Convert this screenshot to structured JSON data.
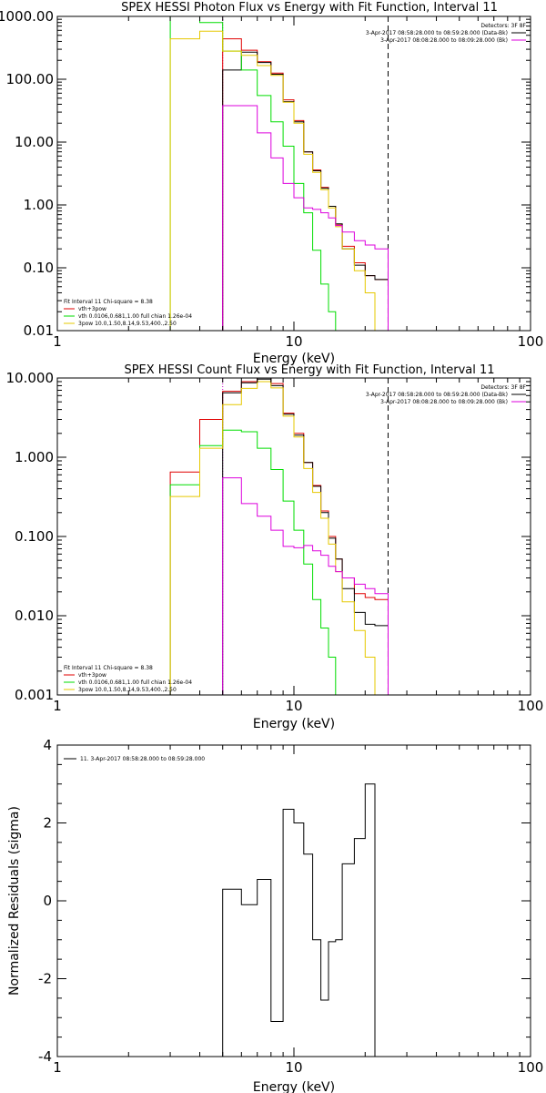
{
  "colors": {
    "total": "#000000",
    "vth_3pow": "#e00000",
    "vth": "#00dd00",
    "3pow": "#e6c800",
    "background": "#dd00dd",
    "fit_range_line": "#000000",
    "threshold_line": "#cc00cc"
  },
  "chart_data": [
    {
      "type": "line",
      "title": "SPEX HESSI Photon Flux vs Energy with Fit Function, Interval 11",
      "xlabel": "Energy (keV)",
      "ylabel": "",
      "xscale": "log",
      "yscale": "log",
      "xlim": [
        1,
        100
      ],
      "ylim": [
        0.01,
        1000
      ],
      "x_ticks": [
        1,
        10,
        100
      ],
      "x_tick_labels": [
        "1",
        "10",
        "100"
      ],
      "y_ticks": [
        0.01,
        0.1,
        1,
        10,
        100,
        1000
      ],
      "y_tick_labels": [
        "0.01",
        "0.10",
        "1.00",
        "10.00",
        "100.00",
        "1000.00"
      ],
      "info_text": [
        "Detectors: 3F 8F",
        "3-Apr-2017 08:58:28.000 to 08:59:28.000 (Data-Bk)",
        "3-Apr-2017 08:08:28.000 to 08:09:28.000 (Bk)"
      ],
      "vertical_lines": [
        {
          "x": 5.0,
          "style": "dotted",
          "color_key": "threshold_line"
        },
        {
          "x": 25.0,
          "style": "dashed",
          "color_key": "fit_range_line"
        }
      ],
      "legend": {
        "placement": "bottom-left",
        "lines": [
          "Fit Interval 11   Chi-square = 8.38",
          "vth+3pow",
          "vth 0.0106,0.681,1.00  full chian 1.26e-04",
          "3pow 10.0,1.50,8.14,9.53,400.,2.50"
        ]
      },
      "bin_edges": [
        3.0,
        4.0,
        5.0,
        6.0,
        7.0,
        8.0,
        9.0,
        10.0,
        11.0,
        12.0,
        13.0,
        14.0,
        15.0,
        16.0,
        18.0,
        20.0,
        22.0,
        25.0
      ],
      "series": [
        {
          "name": "vth+3pow",
          "color_key": "vth_3pow",
          "start": 2,
          "values": [
            440,
            290,
            190,
            125,
            47,
            22,
            7.0,
            3.6,
            1.9,
            0.95,
            0.48,
            0.22,
            0.12,
            0.075,
            0.065
          ]
        },
        {
          "name": "",
          "color_key": "total",
          "start": 2,
          "values": [
            140,
            270,
            185,
            120,
            44,
            21,
            7.0,
            3.5,
            1.85,
            0.95,
            0.5,
            0.2,
            0.11,
            0.075,
            0.065
          ]
        },
        {
          "name": "vth",
          "color_key": "vth",
          "start": 0,
          "values": [
            1000,
            800,
            280,
            140,
            55,
            21,
            8.6,
            2.2,
            0.75,
            0.19,
            0.055,
            0.02,
            0.01
          ]
        },
        {
          "name": "3pow",
          "color_key": "3pow",
          "start": 0,
          "values": [
            440,
            580,
            280,
            240,
            165,
            115,
            43,
            20,
            6.4,
            3.3,
            1.75,
            0.9,
            0.45,
            0.2,
            0.09,
            0.04,
            0.01
          ]
        },
        {
          "name": "",
          "color_key": "background",
          "start": 2,
          "values": [
            38,
            38,
            14,
            5.6,
            2.2,
            1.3,
            0.9,
            0.85,
            0.75,
            0.62,
            0.47,
            0.37,
            0.27,
            0.23,
            0.2
          ]
        }
      ]
    },
    {
      "type": "line",
      "title": "SPEX HESSI Count Flux vs Energy with Fit Function, Interval 11",
      "xlabel": "Energy (keV)",
      "ylabel": "",
      "xscale": "log",
      "yscale": "log",
      "xlim": [
        1,
        100
      ],
      "ylim": [
        0.001,
        10
      ],
      "x_ticks": [
        1,
        10,
        100
      ],
      "x_tick_labels": [
        "1",
        "10",
        "100"
      ],
      "y_ticks": [
        0.001,
        0.01,
        0.1,
        1,
        10
      ],
      "y_tick_labels": [
        "0.001",
        "0.010",
        "0.100",
        "1.000",
        "10.000"
      ],
      "info_text": [
        "Detectors: 3F 8F",
        "3-Apr-2017 08:58:28.000 to 08:59:28.000 (Data-Bk)",
        "3-Apr-2017 08:08:28.000 to 08:09:28.000 (Bk)"
      ],
      "vertical_lines": [
        {
          "x": 5.0,
          "style": "dotted",
          "color_key": "threshold_line"
        },
        {
          "x": 25.0,
          "style": "dashed",
          "color_key": "fit_range_line"
        }
      ],
      "legend": {
        "placement": "bottom-left",
        "lines": [
          "Fit Interval 11   Chi-square = 8.38",
          "vth+3pow",
          "vth 0.0106,0.681,1.00  full chian 1.26e-04",
          "3pow 10.0,1.50,8.14,9.53,400.,2.50"
        ]
      },
      "bin_edges": [
        3.0,
        4.0,
        5.0,
        6.0,
        7.0,
        8.0,
        9.0,
        10.0,
        11.0,
        12.0,
        13.0,
        14.0,
        15.0,
        16.0,
        18.0,
        20.0,
        22.0,
        25.0
      ],
      "series": [
        {
          "name": "vth+3pow",
          "color_key": "vth_3pow",
          "start": 0,
          "values": [
            0.65,
            3.0,
            6.8,
            9.0,
            10.0,
            8.5,
            3.6,
            2.0,
            0.86,
            0.44,
            0.21,
            0.1,
            0.052,
            0.03,
            0.019,
            0.017,
            0.016
          ]
        },
        {
          "name": "",
          "color_key": "total",
          "start": 2,
          "values": [
            6.5,
            8.7,
            9.7,
            8.0,
            3.5,
            1.9,
            0.86,
            0.43,
            0.2,
            0.095,
            0.052,
            0.022,
            0.011,
            0.0078,
            0.0075
          ]
        },
        {
          "name": "vth",
          "color_key": "vth",
          "start": 0,
          "values": [
            0.45,
            1.4,
            2.2,
            2.1,
            1.3,
            0.7,
            0.28,
            0.12,
            0.045,
            0.016,
            0.007,
            0.003,
            0.001
          ]
        },
        {
          "name": "3pow",
          "color_key": "3pow",
          "start": 0,
          "values": [
            0.32,
            1.3,
            4.6,
            7.4,
            9.0,
            7.5,
            3.3,
            1.8,
            0.72,
            0.36,
            0.17,
            0.08,
            0.036,
            0.015,
            0.0065,
            0.003,
            0.001
          ]
        },
        {
          "name": "",
          "color_key": "background",
          "start": 2,
          "values": [
            0.55,
            0.26,
            0.18,
            0.12,
            0.075,
            0.072,
            0.077,
            0.066,
            0.058,
            0.042,
            0.036,
            0.03,
            0.025,
            0.022,
            0.019
          ]
        }
      ]
    },
    {
      "type": "line",
      "title": "",
      "xlabel": "Energy (keV)",
      "ylabel": "Normalized Residuals (sigma)",
      "xscale": "log",
      "yscale": "linear",
      "xlim": [
        1,
        100
      ],
      "ylim": [
        -4,
        4
      ],
      "x_ticks": [
        1,
        10,
        100
      ],
      "x_tick_labels": [
        "1",
        "10",
        "100"
      ],
      "y_ticks": [
        -4,
        -2,
        0,
        2,
        4
      ],
      "y_tick_labels": [
        "-4",
        "-2",
        "0",
        "2",
        "4"
      ],
      "legend": {
        "placement": "top-left",
        "lines": [
          "11.  3-Apr-2017 08:58:28.000 to 08:59:28.000"
        ]
      },
      "bin_edges": [
        5.0,
        6.0,
        7.0,
        8.0,
        9.0,
        10.0,
        11.0,
        12.0,
        13.0,
        14.0,
        15.0,
        16.0,
        18.0,
        20.0,
        22.0,
        25.0
      ],
      "series": [
        {
          "name": "",
          "color_key": "total",
          "start": 0,
          "values": [
            0.3,
            -0.1,
            0.55,
            -3.1,
            2.35,
            2.0,
            1.2,
            -1.0,
            -2.55,
            -1.05,
            -1.0,
            0.95,
            1.6,
            3.0
          ]
        }
      ]
    }
  ]
}
